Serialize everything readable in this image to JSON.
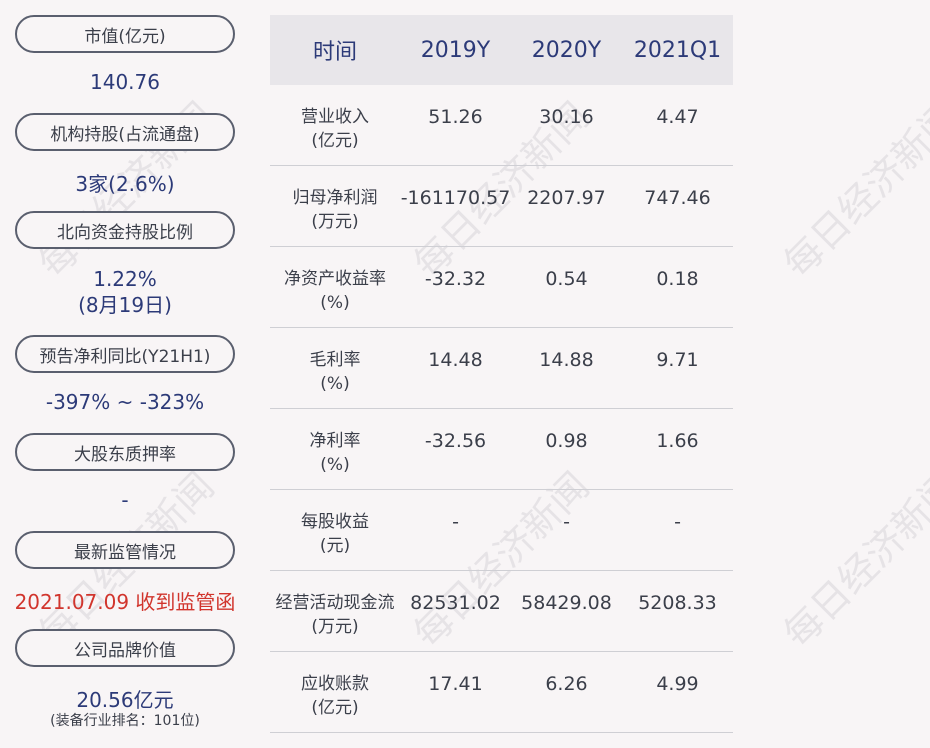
{
  "left": {
    "items": [
      {
        "label": "市值(亿元)",
        "value": "140.76"
      },
      {
        "label": "机构持股(占流通盘)",
        "value": "3家(2.6%)"
      },
      {
        "label": "北向资金持股比例",
        "value": "1.22%",
        "value2": "(8月19日)"
      },
      {
        "label": "预告净利同比(Y21H1)",
        "value": "-397% ~ -323%"
      },
      {
        "label": "大股东质押率",
        "value": "-"
      },
      {
        "label": "最新监管情况",
        "value": "2021.07.09 收到监管函"
      },
      {
        "label": "公司品牌价值",
        "value": "20.56亿元",
        "sub": "(装备行业排名：101位)"
      }
    ]
  },
  "table": {
    "headers": [
      "时间",
      "2019Y",
      "2020Y",
      "2021Q1"
    ],
    "rows": [
      {
        "name1": "营业收入",
        "name2": "(亿元)",
        "v": [
          "51.26",
          "30.16",
          "4.47"
        ]
      },
      {
        "name1": "归母净利润",
        "name2": "(万元)",
        "v": [
          "-161170.57",
          "2207.97",
          "747.46"
        ]
      },
      {
        "name1": "净资产收益率",
        "name2": "(%)",
        "v": [
          "-32.32",
          "0.54",
          "0.18"
        ]
      },
      {
        "name1": "毛利率",
        "name2": "(%)",
        "v": [
          "14.48",
          "14.88",
          "9.71"
        ]
      },
      {
        "name1": "净利率",
        "name2": "(%)",
        "v": [
          "-32.56",
          "0.98",
          "1.66"
        ]
      },
      {
        "name1": "每股收益",
        "name2": "(元)",
        "v": [
          "-",
          "-",
          "-"
        ]
      },
      {
        "name1": "经营活动现金流",
        "name2": "(万元)",
        "v": [
          "82531.02",
          "58429.08",
          "5208.33"
        ]
      },
      {
        "name1": "应收账款",
        "name2": "(亿元)",
        "v": [
          "17.41",
          "6.26",
          "4.99"
        ]
      }
    ]
  },
  "watermark": "每日经济新闻",
  "colors": {
    "accent": "#2c3a78",
    "alert": "#d1352d",
    "header_bg": "#e8e6ea"
  }
}
